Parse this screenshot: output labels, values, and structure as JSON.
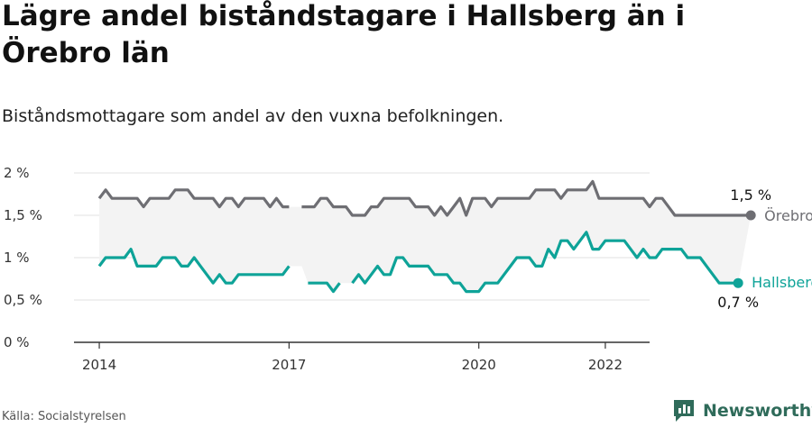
{
  "title": "Lägre andel biståndstagare i Hallsberg än i Örebro län",
  "subtitle": "Biståndsmottagare som andel av den vuxna befolkningen.",
  "source": "Källa: Socialstyrelsen",
  "brand": {
    "name": "Newsworthy",
    "icon": "newsworthy-logo-icon",
    "color": "#2f6b5a"
  },
  "chart_data": {
    "type": "line",
    "x_ticks": [
      2014,
      2017,
      2020,
      2022
    ],
    "y_ticks": [
      "0 %",
      "0,5 %",
      "1 %",
      "1,5 %",
      "2 %"
    ],
    "y_tick_values": [
      0,
      0.5,
      1,
      1.5,
      2
    ],
    "ylim": [
      0,
      2
    ],
    "xlim": [
      2013.6,
      2022.7
    ],
    "grid": true,
    "x_step": 0.1,
    "series": [
      {
        "name": "Örebro län",
        "color": "#6e6e73",
        "end_label": "1,5 %",
        "x_start": 2014.0,
        "values": [
          1.7,
          1.8,
          1.7,
          1.7,
          1.7,
          1.7,
          1.7,
          1.6,
          1.7,
          1.7,
          1.7,
          1.7,
          1.8,
          1.8,
          1.8,
          1.7,
          1.7,
          1.7,
          1.7,
          1.6,
          1.7,
          1.7,
          1.6,
          1.7,
          1.7,
          1.7,
          1.7,
          1.6,
          1.7,
          1.6,
          1.6,
          null,
          1.6,
          1.6,
          1.6,
          1.7,
          1.7,
          1.6,
          1.6,
          1.6,
          1.5,
          1.5,
          1.5,
          1.6,
          1.6,
          1.7,
          1.7,
          1.7,
          1.7,
          1.7,
          1.6,
          1.6,
          1.6,
          1.5,
          1.6,
          1.5,
          1.6,
          1.7,
          1.5,
          1.7,
          1.7,
          1.7,
          1.6,
          1.7,
          1.7,
          1.7,
          1.7,
          1.7,
          1.7,
          1.8,
          1.8,
          1.8,
          1.8,
          1.7,
          1.8,
          1.8,
          1.8,
          1.8,
          1.9,
          1.7,
          1.7,
          1.7,
          1.7,
          1.7,
          1.7,
          1.7,
          1.7,
          1.6,
          1.7,
          1.7,
          1.6,
          1.5,
          1.5,
          1.5,
          1.5,
          1.5,
          1.5,
          1.5,
          1.5,
          1.5,
          1.5,
          1.5,
          1.5,
          1.5
        ]
      },
      {
        "name": "Hallsbergs kommun",
        "color": "#0ea398",
        "end_label": "0,7 %",
        "x_start": 2014.0,
        "values": [
          0.9,
          1.0,
          1.0,
          1.0,
          1.0,
          1.1,
          0.9,
          0.9,
          0.9,
          0.9,
          1.0,
          1.0,
          1.0,
          0.9,
          0.9,
          1.0,
          0.9,
          0.8,
          0.7,
          0.8,
          0.7,
          0.7,
          0.8,
          0.8,
          0.8,
          0.8,
          0.8,
          0.8,
          0.8,
          0.8,
          0.9,
          null,
          null,
          0.7,
          0.7,
          0.7,
          0.7,
          0.6,
          0.7,
          null,
          0.7,
          0.8,
          0.7,
          0.8,
          0.9,
          0.8,
          0.8,
          1.0,
          1.0,
          0.9,
          0.9,
          0.9,
          0.9,
          0.8,
          0.8,
          0.8,
          0.7,
          0.7,
          0.6,
          0.6,
          0.6,
          0.7,
          0.7,
          0.7,
          0.8,
          0.9,
          1.0,
          1.0,
          1.0,
          0.9,
          0.9,
          1.1,
          1.0,
          1.2,
          1.2,
          1.1,
          1.2,
          1.3,
          1.1,
          1.1,
          1.2,
          1.2,
          1.2,
          1.2,
          1.1,
          1.0,
          1.1,
          1.0,
          1.0,
          1.1,
          1.1,
          1.1,
          1.1,
          1.0,
          1.0,
          1.0,
          0.9,
          0.8,
          0.7,
          0.7,
          0.7,
          0.7
        ]
      }
    ]
  }
}
